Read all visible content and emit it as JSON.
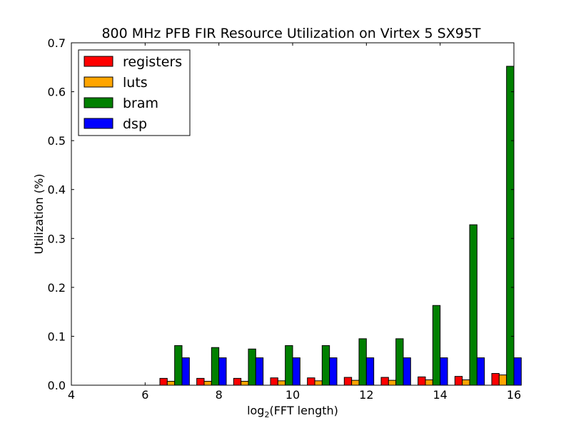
{
  "chart_data": {
    "type": "bar",
    "title": "800 MHz PFB FIR Resource Utilization on Virtex 5 SX95T",
    "xlabel_prefix": "log",
    "xlabel_subscript": "2",
    "xlabel_suffix": "(FFT length)",
    "ylabel": "Utilization (%)",
    "xlim": [
      4,
      16
    ],
    "ylim": [
      0,
      0.7
    ],
    "xticks": [
      "4",
      "6",
      "8",
      "10",
      "12",
      "14",
      "16"
    ],
    "yticks": [
      "0.0",
      "0.1",
      "0.2",
      "0.3",
      "0.4",
      "0.5",
      "0.6",
      "0.7"
    ],
    "x": [
      4,
      5,
      6,
      7,
      8,
      9,
      10,
      11,
      12,
      13,
      14,
      15
    ],
    "grid": false,
    "legend_position": "top-left",
    "series": [
      {
        "name": "registers",
        "color": "#ff0000",
        "values": [
          0.0,
          0.0,
          0.014,
          0.014,
          0.014,
          0.015,
          0.015,
          0.016,
          0.016,
          0.017,
          0.018,
          0.024
        ]
      },
      {
        "name": "luts",
        "color": "#ffa500",
        "values": [
          0.0,
          0.0,
          0.008,
          0.008,
          0.008,
          0.009,
          0.009,
          0.01,
          0.01,
          0.011,
          0.011,
          0.021
        ]
      },
      {
        "name": "bram",
        "color": "#008000",
        "values": [
          0.0,
          0.0,
          0.081,
          0.077,
          0.074,
          0.081,
          0.081,
          0.095,
          0.095,
          0.163,
          0.328,
          0.652
        ]
      },
      {
        "name": "dsp",
        "color": "#0000ff",
        "values": [
          0.0,
          0.0,
          0.056,
          0.056,
          0.056,
          0.056,
          0.056,
          0.056,
          0.056,
          0.056,
          0.056,
          0.056
        ]
      }
    ]
  }
}
